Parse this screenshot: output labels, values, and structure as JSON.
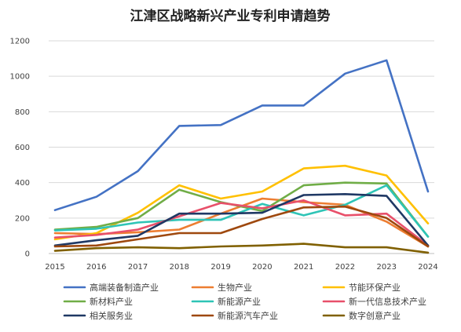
{
  "chart_data": {
    "type": "line",
    "title": "江津区战略新兴产业专利申请趋势",
    "xlabel": "",
    "ylabel": "",
    "x": [
      "2015",
      "2016",
      "2017",
      "2018",
      "2019",
      "2020",
      "2021",
      "2022",
      "2023",
      "2024"
    ],
    "ylim": [
      0,
      1200
    ],
    "yticks": [
      0,
      200,
      400,
      600,
      800,
      1000,
      1200
    ],
    "grid": true,
    "legend_position": "bottom",
    "series": [
      {
        "name": "高端装备制造产业",
        "color": "#4472C4",
        "values": [
          245,
          320,
          465,
          720,
          725,
          835,
          835,
          1015,
          1090,
          350
        ]
      },
      {
        "name": "生物产业",
        "color": "#ED7D31",
        "values": [
          115,
          110,
          120,
          135,
          225,
          310,
          290,
          275,
          180,
          40
        ]
      },
      {
        "name": "节能环保产业",
        "color": "#FFC000",
        "values": [
          80,
          115,
          230,
          385,
          310,
          350,
          480,
          495,
          440,
          170
        ]
      },
      {
        "name": "新材料产业",
        "color": "#70AD47",
        "values": [
          135,
          150,
          200,
          360,
          290,
          240,
          385,
          400,
          395,
          95
        ]
      },
      {
        "name": "新能源产业",
        "color": "#2EC4B6",
        "values": [
          130,
          140,
          175,
          190,
          190,
          280,
          215,
          275,
          385,
          95
        ]
      },
      {
        "name": "新一代信息技术产业",
        "color": "#E8506A",
        "values": [
          90,
          105,
          135,
          210,
          285,
          255,
          300,
          215,
          225,
          45
        ]
      },
      {
        "name": "相关服务业",
        "color": "#1F3864",
        "values": [
          45,
          75,
          100,
          225,
          225,
          230,
          330,
          335,
          325,
          45
        ]
      },
      {
        "name": "新能源汽车产业",
        "color": "#9E480E",
        "values": [
          40,
          45,
          80,
          115,
          115,
          195,
          260,
          265,
          200,
          40
        ]
      },
      {
        "name": "数字创意产业",
        "color": "#806000",
        "values": [
          15,
          30,
          35,
          30,
          40,
          45,
          55,
          35,
          35,
          5
        ]
      }
    ]
  }
}
